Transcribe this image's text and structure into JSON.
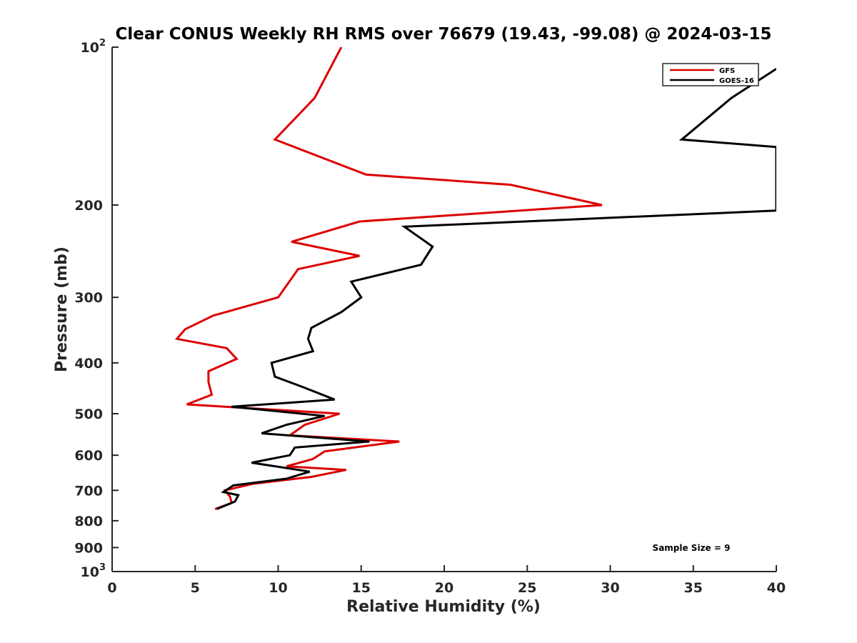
{
  "chart_data": {
    "type": "line",
    "title": "Clear CONUS Weekly RH RMS over 76679 (19.43, -99.08) @ 2024-03-15",
    "xlabel": "Relative Humidity (%)",
    "ylabel": "Pressure (mb)",
    "xlim": [
      0,
      40
    ],
    "ylim": [
      100,
      1000
    ],
    "yscale": "log",
    "y_reversed": true,
    "grid": false,
    "legend_position": "top-right",
    "x_ticks": [
      0,
      5,
      10,
      15,
      20,
      25,
      30,
      35,
      40
    ],
    "y_ticks": [
      {
        "value": 100,
        "base": "10",
        "exp": "2"
      },
      {
        "value": 200,
        "label": "200"
      },
      {
        "value": 300,
        "label": "300"
      },
      {
        "value": 400,
        "label": "400"
      },
      {
        "value": 500,
        "label": "500"
      },
      {
        "value": 600,
        "label": "600"
      },
      {
        "value": 700,
        "label": "700"
      },
      {
        "value": 800,
        "label": "800"
      },
      {
        "value": 900,
        "label": "900"
      },
      {
        "value": 1000,
        "base": "10",
        "exp": "3"
      }
    ],
    "series": [
      {
        "name": "GFS",
        "color": "#dd0000",
        "points": [
          [
            13.8,
            100
          ],
          [
            12.2,
            125
          ],
          [
            9.8,
            150
          ],
          [
            15.3,
            175
          ],
          [
            24.0,
            183
          ],
          [
            29.5,
            200
          ],
          [
            14.9,
            215
          ],
          [
            10.8,
            235
          ],
          [
            14.9,
            250
          ],
          [
            11.2,
            265
          ],
          [
            10.0,
            300
          ],
          [
            6.1,
            325
          ],
          [
            4.4,
            345
          ],
          [
            3.9,
            360
          ],
          [
            6.9,
            375
          ],
          [
            7.5,
            393
          ],
          [
            5.8,
            415
          ],
          [
            5.8,
            435
          ],
          [
            6.0,
            460
          ],
          [
            4.5,
            480
          ],
          [
            13.7,
            500
          ],
          [
            11.6,
            525
          ],
          [
            10.7,
            550
          ],
          [
            17.3,
            565
          ],
          [
            12.8,
            590
          ],
          [
            12.1,
            610
          ],
          [
            10.5,
            630
          ],
          [
            14.1,
            640
          ],
          [
            12.0,
            660
          ],
          [
            8.5,
            680
          ],
          [
            6.8,
            700
          ],
          [
            7.1,
            720
          ],
          [
            7.2,
            740
          ],
          [
            6.2,
            760
          ]
        ]
      },
      {
        "name": "GOES-16",
        "color": "#000000",
        "points": [
          [
            40.0,
            110
          ],
          [
            37.3,
            125
          ],
          [
            34.3,
            150
          ],
          [
            40.0,
            155
          ],
          [
            40.0,
            205
          ],
          [
            17.6,
            220
          ],
          [
            19.3,
            240
          ],
          [
            18.6,
            260
          ],
          [
            14.4,
            280
          ],
          [
            15.0,
            300
          ],
          [
            13.8,
            320
          ],
          [
            12.0,
            343
          ],
          [
            11.8,
            360
          ],
          [
            12.1,
            380
          ],
          [
            9.6,
            400
          ],
          [
            9.8,
            425
          ],
          [
            11.5,
            445
          ],
          [
            13.4,
            470
          ],
          [
            7.2,
            485
          ],
          [
            12.8,
            505
          ],
          [
            10.5,
            525
          ],
          [
            9.0,
            545
          ],
          [
            15.5,
            565
          ],
          [
            11.0,
            580
          ],
          [
            10.7,
            600
          ],
          [
            8.4,
            620
          ],
          [
            11.9,
            645
          ],
          [
            10.5,
            665
          ],
          [
            7.3,
            685
          ],
          [
            6.7,
            705
          ],
          [
            7.6,
            715
          ],
          [
            7.4,
            735
          ],
          [
            6.3,
            760
          ]
        ]
      }
    ],
    "annotation": "Sample Size = 9"
  }
}
